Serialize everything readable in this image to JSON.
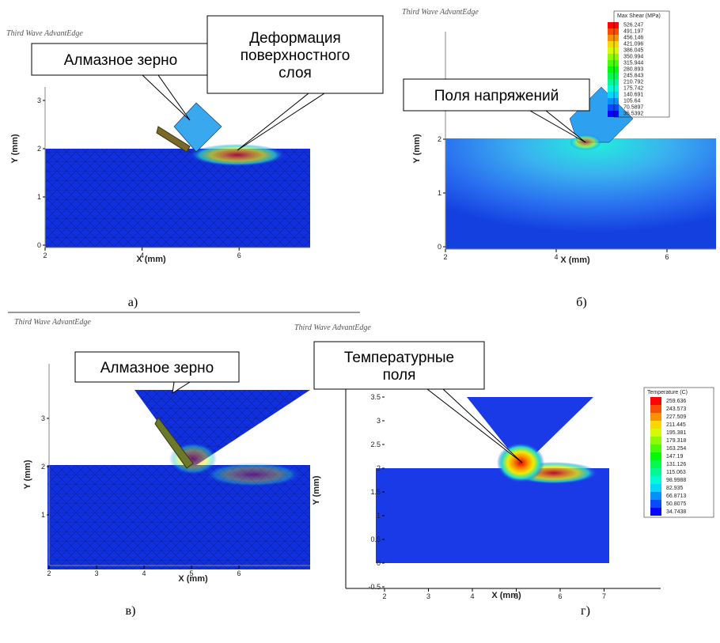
{
  "panels": [
    {
      "watermark": "Third Wave AdvantEdge",
      "callouts": [
        [
          "Алмазное зерно"
        ],
        [
          "Деформация",
          "поверхностного",
          "слоя"
        ]
      ],
      "y_label": "Y (mm)",
      "x_label": "X (mm)",
      "y_ticks": [
        0,
        1,
        2,
        3
      ],
      "x_ticks": [
        2,
        4,
        6
      ],
      "caption": "а)"
    },
    {
      "watermark": "Third Wave AdvantEdge",
      "callouts": [
        [
          "Поля напряжений"
        ]
      ],
      "y_label": "Y (mm)",
      "x_label": "X (mm)",
      "y_ticks": [
        0,
        1,
        2
      ],
      "x_ticks": [
        2,
        4,
        6
      ],
      "legend": {
        "title": "Max Shear (MPa)",
        "values": [
          526.247,
          491.197,
          456.146,
          421.096,
          386.045,
          350.994,
          315.944,
          280.893,
          245.843,
          210.792,
          175.742,
          140.691,
          105.64,
          70.5897,
          35.5392
        ]
      },
      "caption": "б)"
    },
    {
      "watermark": "Third Wave AdvantEdge",
      "callouts": [
        [
          "Алмазное зерно"
        ]
      ],
      "y_label": "Y (mm)",
      "x_label": "X (mm)",
      "y_ticks": [
        1,
        2,
        3
      ],
      "x_ticks": [
        2,
        3,
        4,
        5,
        6
      ],
      "caption": "в)"
    },
    {
      "watermark": "Third Wave AdvantEdge",
      "callouts": [
        [
          "Температурные",
          "поля"
        ]
      ],
      "y_label": "Y (mm)",
      "x_label": "X (mm)",
      "y_ticks": [
        -0.5,
        0,
        0.5,
        1,
        1.5,
        2,
        2.5,
        3,
        3.5
      ],
      "x_ticks": [
        2,
        3,
        4,
        5,
        6,
        7
      ],
      "legend": {
        "title": "Temperature (C)",
        "values": [
          259.636,
          243.573,
          227.509,
          211.445,
          195.381,
          179.318,
          163.254,
          147.19,
          131.126,
          115.063,
          98.9988,
          82.935,
          66.8713,
          50.8075,
          34.7438
        ]
      },
      "caption": "г)"
    }
  ]
}
